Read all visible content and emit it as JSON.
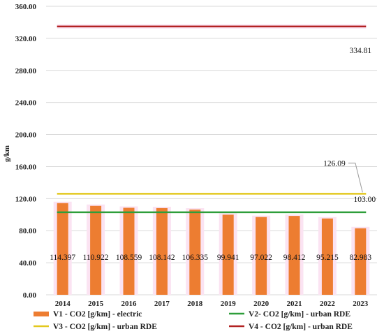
{
  "chart_data": {
    "type": "bar",
    "categories": [
      "2014",
      "2015",
      "2016",
      "2017",
      "2018",
      "2019",
      "2020",
      "2021",
      "2022",
      "2023"
    ],
    "series": [
      {
        "name": "V1 - CO2 [g/km] - electric",
        "kind": "bar",
        "color": "#ED7D31",
        "values": [
          114.397,
          110.922,
          108.559,
          108.142,
          106.335,
          99.941,
          97.022,
          98.412,
          95.215,
          82.983
        ],
        "labels": [
          "114.397",
          "110.922",
          "108.559",
          "108.142",
          "106.335",
          "99.941",
          "97.022",
          "98.412",
          "95.215",
          "82.983"
        ]
      },
      {
        "name": "V2- CO2 [g/km] - urban RDE",
        "kind": "line",
        "color": "#2E9E3A",
        "value": 103.0,
        "label": "103.00"
      },
      {
        "name": "V3 - CO2 [g/km] - urban RDE",
        "kind": "line",
        "color": "#E3C81E",
        "value": 126.09,
        "label": "126.09"
      },
      {
        "name": "V4 - CO2 [g/km] - urban RDE",
        "kind": "line",
        "color": "#B22222",
        "value": 334.81,
        "label": "334.81"
      }
    ],
    "yticks": [
      "0.00",
      "40.00",
      "80.00",
      "120.00",
      "160.00",
      "200.00",
      "240.00",
      "280.00",
      "320.00",
      "360.00"
    ],
    "ylim": [
      0,
      360
    ],
    "xlabel": "",
    "ylabel": "g/km",
    "grid": true,
    "legend": "bottom"
  }
}
